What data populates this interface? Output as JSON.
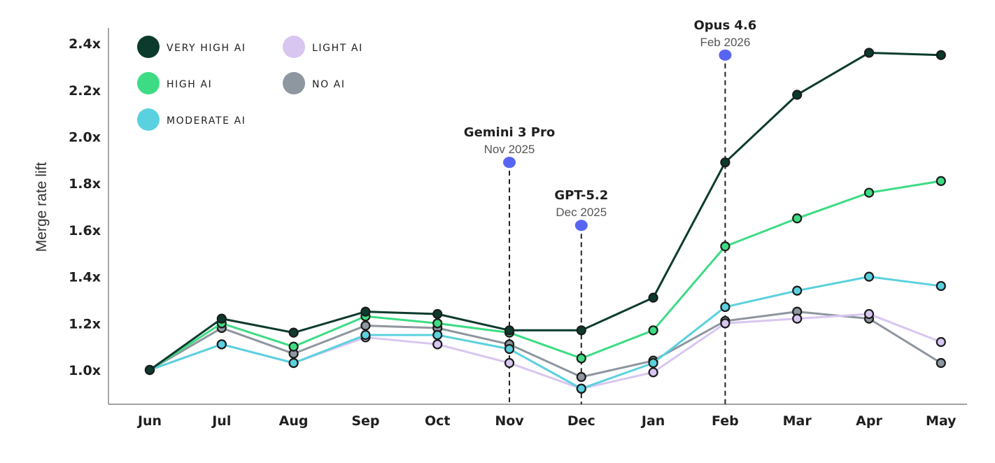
{
  "chart_data": {
    "type": "line",
    "title": "",
    "xlabel": "",
    "ylabel": "Merge rate lift",
    "categories": [
      "Jun",
      "Jul",
      "Aug",
      "Sep",
      "Oct",
      "Nov",
      "Dec",
      "Jan",
      "Feb",
      "Mar",
      "Apr",
      "May"
    ],
    "ylim": [
      0.93,
      2.43
    ],
    "yticks": [
      1.0,
      1.2,
      1.4,
      1.6,
      1.8,
      2.0,
      2.2,
      2.4
    ],
    "ytick_labels": [
      "1.0x",
      "1.2x",
      "1.4x",
      "1.6x",
      "1.8x",
      "2.0x",
      "2.2x",
      "2.4x"
    ],
    "grid": false,
    "legend_position": "top-left",
    "series": [
      {
        "name": "VERY HIGH AI",
        "color": "#0c3b2e",
        "values": [
          1.0,
          1.22,
          1.16,
          1.25,
          1.24,
          1.17,
          1.17,
          1.31,
          1.89,
          2.18,
          2.36,
          2.35
        ]
      },
      {
        "name": "HIGH AI",
        "color": "#3ddc84",
        "values": [
          1.0,
          1.2,
          1.1,
          1.23,
          1.2,
          1.16,
          1.05,
          1.17,
          1.53,
          1.65,
          1.76,
          1.81
        ]
      },
      {
        "name": "MODERATE AI",
        "color": "#5ad1de",
        "values": [
          1.0,
          1.11,
          1.03,
          1.15,
          1.15,
          1.09,
          0.92,
          1.03,
          1.27,
          1.34,
          1.4,
          1.36
        ]
      },
      {
        "name": "LIGHT AI",
        "color": "#d8c6f0",
        "values": [
          1.0,
          1.11,
          1.03,
          1.14,
          1.11,
          1.03,
          0.92,
          0.99,
          1.2,
          1.22,
          1.24,
          1.12
        ]
      },
      {
        "name": "NO AI",
        "color": "#8e969f",
        "values": [
          1.0,
          1.18,
          1.07,
          1.19,
          1.18,
          1.11,
          0.97,
          1.04,
          1.21,
          1.25,
          1.22,
          1.03
        ]
      }
    ],
    "annotations": [
      {
        "title": "Gemini 3 Pro",
        "date": "Nov 2025",
        "category": "Nov",
        "marker_y": 1.89,
        "color": "#5865f2"
      },
      {
        "title": "GPT-5.2",
        "date": "Dec 2025",
        "category": "Dec",
        "marker_y": 1.62,
        "color": "#5865f2"
      },
      {
        "title": "Opus 4.6",
        "date": "Feb 2026",
        "category": "Feb",
        "marker_y": 2.35,
        "color": "#5865f2"
      }
    ]
  }
}
